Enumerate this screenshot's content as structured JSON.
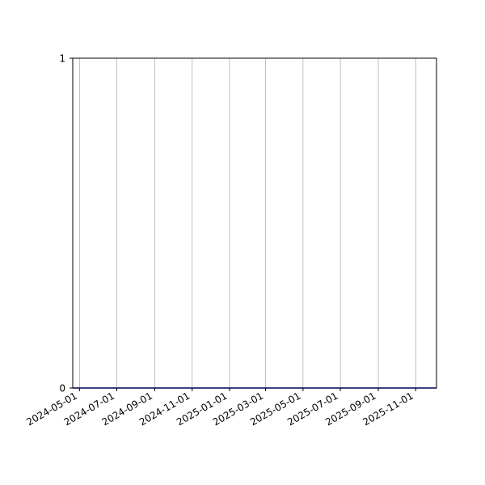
{
  "chart_data": {
    "type": "line",
    "title": "",
    "xlabel": "",
    "ylabel": "",
    "x_axis_type": "date",
    "xlim": [
      "2024-04-20",
      "2025-12-05"
    ],
    "ylim": [
      0,
      1
    ],
    "x_ticks": [
      "2024-05-01",
      "2024-07-01",
      "2024-09-01",
      "2024-11-01",
      "2025-01-01",
      "2025-03-01",
      "2025-05-01",
      "2025-07-01",
      "2025-09-01",
      "2025-11-01"
    ],
    "y_ticks": [
      "0",
      "1"
    ],
    "grid": {
      "x": true,
      "y": false,
      "color": "#b0b0b0"
    },
    "series": [
      {
        "x": [
          "2024-04-20",
          "2025-12-05"
        ],
        "y": [
          0,
          0
        ],
        "color": "#0000ff"
      }
    ]
  }
}
